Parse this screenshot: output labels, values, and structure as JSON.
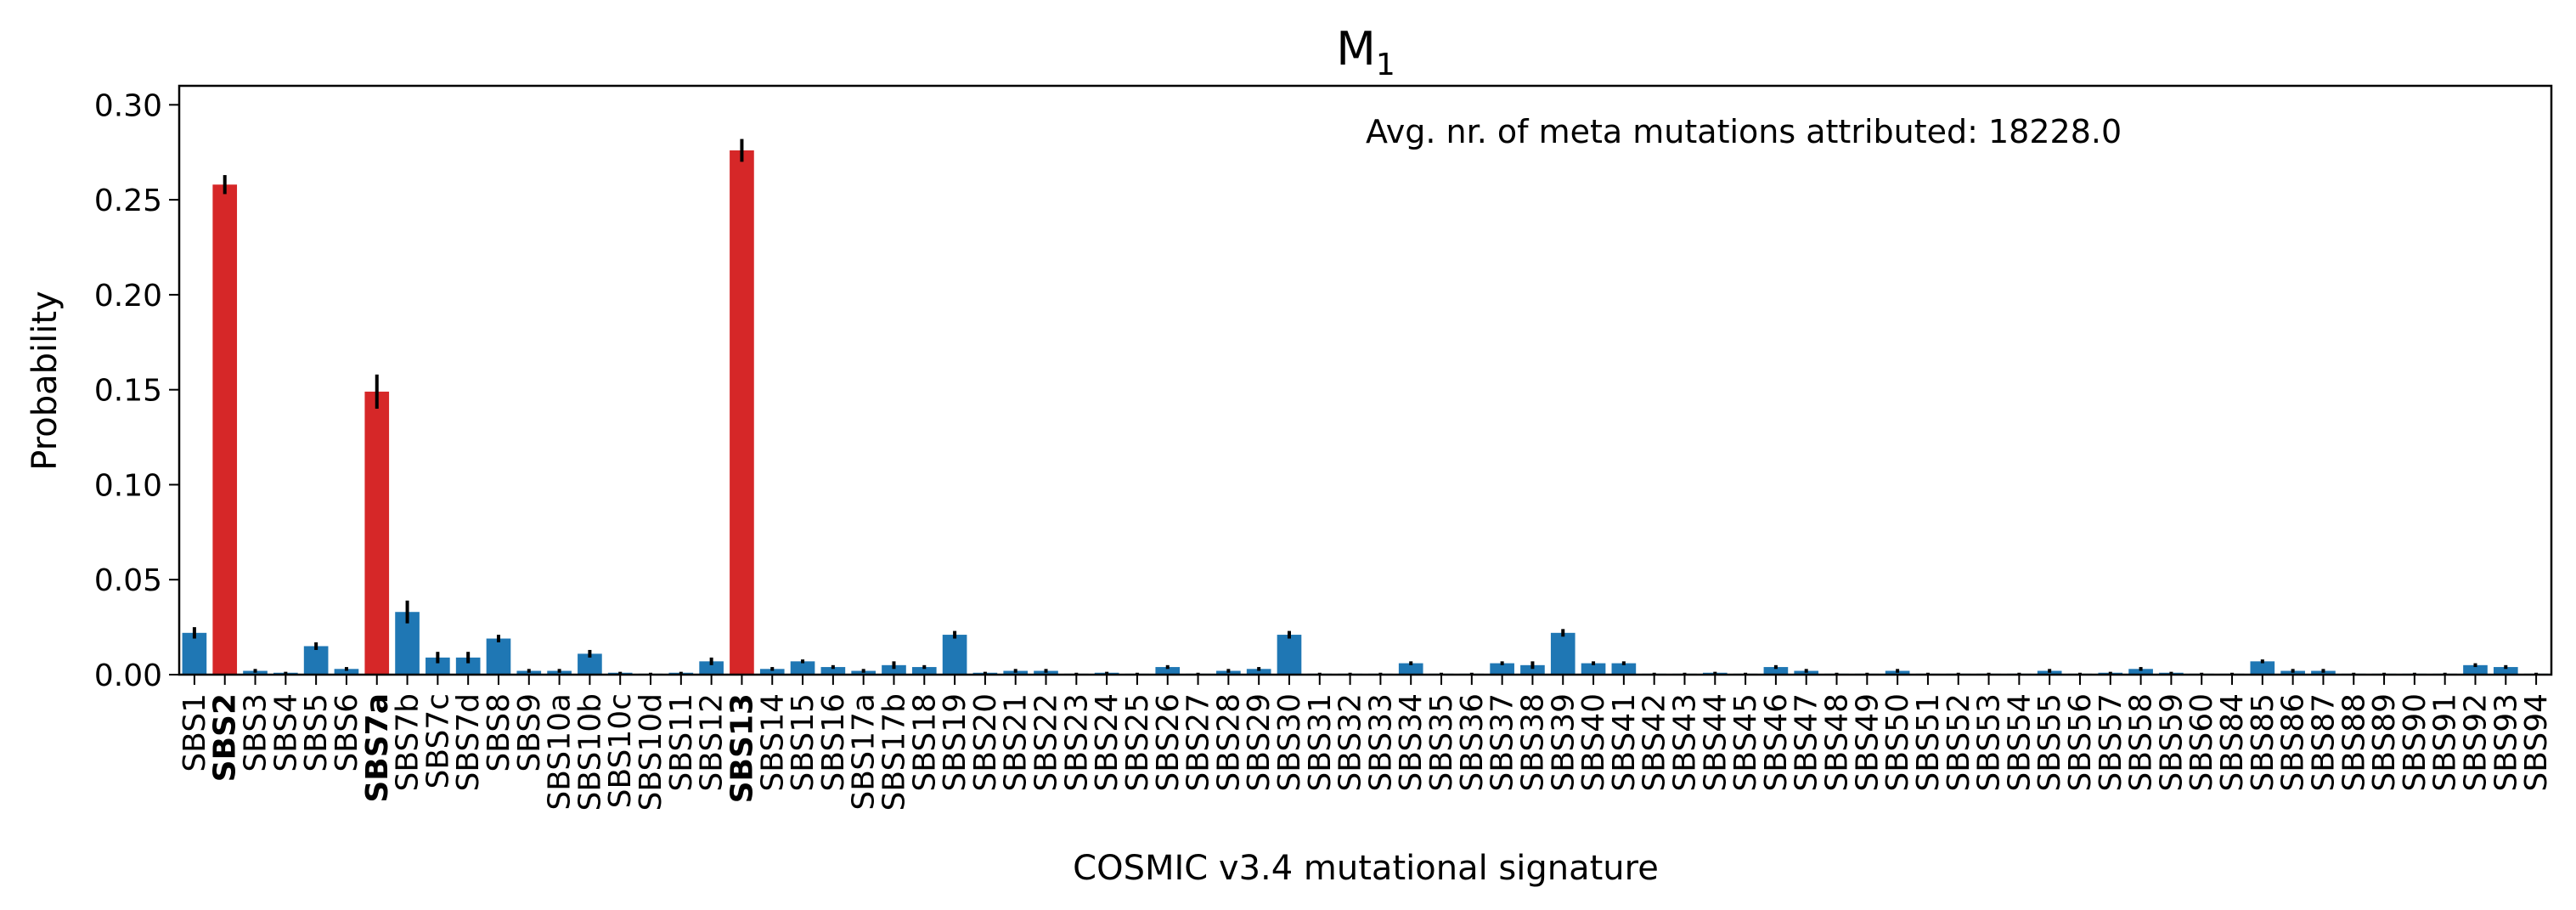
{
  "chart_data": {
    "type": "bar",
    "title": "M",
    "title_subscript": "1",
    "xlabel": "COSMIC v3.4 mutational signature",
    "ylabel": "Probability",
    "ylim": [
      0,
      0.31
    ],
    "yticks": [
      "0.00",
      "0.05",
      "0.10",
      "0.15",
      "0.20",
      "0.25",
      "0.30"
    ],
    "grid": false,
    "annotation": "Avg. nr. of meta mutations attributed: 18228.0",
    "colors": {
      "default": "#1f77b4",
      "highlight": "#d62728",
      "errorbar": "#000000"
    },
    "categories": [
      "SBS1",
      "SBS2",
      "SBS3",
      "SBS4",
      "SBS5",
      "SBS6",
      "SBS7a",
      "SBS7b",
      "SBS7c",
      "SBS7d",
      "SBS8",
      "SBS9",
      "SBS10a",
      "SBS10b",
      "SBS10c",
      "SBS10d",
      "SBS11",
      "SBS12",
      "SBS13",
      "SBS14",
      "SBS15",
      "SBS16",
      "SBS17a",
      "SBS17b",
      "SBS18",
      "SBS19",
      "SBS20",
      "SBS21",
      "SBS22",
      "SBS23",
      "SBS24",
      "SBS25",
      "SBS26",
      "SBS27",
      "SBS28",
      "SBS29",
      "SBS30",
      "SBS31",
      "SBS32",
      "SBS33",
      "SBS34",
      "SBS35",
      "SBS36",
      "SBS37",
      "SBS38",
      "SBS39",
      "SBS40",
      "SBS41",
      "SBS42",
      "SBS43",
      "SBS44",
      "SBS45",
      "SBS46",
      "SBS47",
      "SBS48",
      "SBS49",
      "SBS50",
      "SBS51",
      "SBS52",
      "SBS53",
      "SBS54",
      "SBS55",
      "SBS56",
      "SBS57",
      "SBS58",
      "SBS59",
      "SBS60",
      "SBS84",
      "SBS85",
      "SBS86",
      "SBS87",
      "SBS88",
      "SBS89",
      "SBS90",
      "SBS91",
      "SBS92",
      "SBS93",
      "SBS94"
    ],
    "values": [
      0.022,
      0.258,
      0.002,
      0.001,
      0.015,
      0.003,
      0.149,
      0.033,
      0.009,
      0.009,
      0.019,
      0.002,
      0.002,
      0.011,
      0.001,
      0.0005,
      0.001,
      0.007,
      0.276,
      0.003,
      0.007,
      0.004,
      0.002,
      0.005,
      0.004,
      0.021,
      0.001,
      0.002,
      0.002,
      0.0005,
      0.001,
      0.0005,
      0.004,
      0.0005,
      0.002,
      0.003,
      0.021,
      0.0005,
      0.0005,
      0.0005,
      0.006,
      0.0005,
      0.0005,
      0.006,
      0.005,
      0.022,
      0.006,
      0.006,
      0.0005,
      0.0005,
      0.001,
      0.0005,
      0.004,
      0.002,
      0.0005,
      0.0005,
      0.002,
      0.0005,
      0.0005,
      0.0005,
      0.0005,
      0.002,
      0.0005,
      0.001,
      0.003,
      0.001,
      0.0005,
      0.0005,
      0.007,
      0.002,
      0.002,
      0.0005,
      0.0005,
      0.0005,
      0.0005,
      0.005,
      0.004,
      0.0005
    ],
    "errors": [
      0.003,
      0.005,
      0.001,
      0.0005,
      0.002,
      0.001,
      0.009,
      0.006,
      0.003,
      0.003,
      0.002,
      0.001,
      0.001,
      0.002,
      0.0005,
      0.0005,
      0.0005,
      0.002,
      0.006,
      0.001,
      0.001,
      0.001,
      0.001,
      0.002,
      0.001,
      0.002,
      0.0005,
      0.001,
      0.001,
      0.0005,
      0.0005,
      0.0005,
      0.001,
      0.0005,
      0.001,
      0.001,
      0.002,
      0.0005,
      0.0005,
      0.0005,
      0.001,
      0.0005,
      0.0005,
      0.001,
      0.002,
      0.002,
      0.001,
      0.001,
      0.0005,
      0.0005,
      0.0005,
      0.0005,
      0.001,
      0.001,
      0.0005,
      0.0005,
      0.001,
      0.0005,
      0.0005,
      0.0005,
      0.0005,
      0.001,
      0.0005,
      0.0005,
      0.001,
      0.0005,
      0.0005,
      0.0005,
      0.001,
      0.001,
      0.001,
      0.0005,
      0.0005,
      0.0005,
      0.0005,
      0.001,
      0.001,
      0.0005
    ],
    "highlighted": [
      "SBS2",
      "SBS7a",
      "SBS13"
    ]
  }
}
